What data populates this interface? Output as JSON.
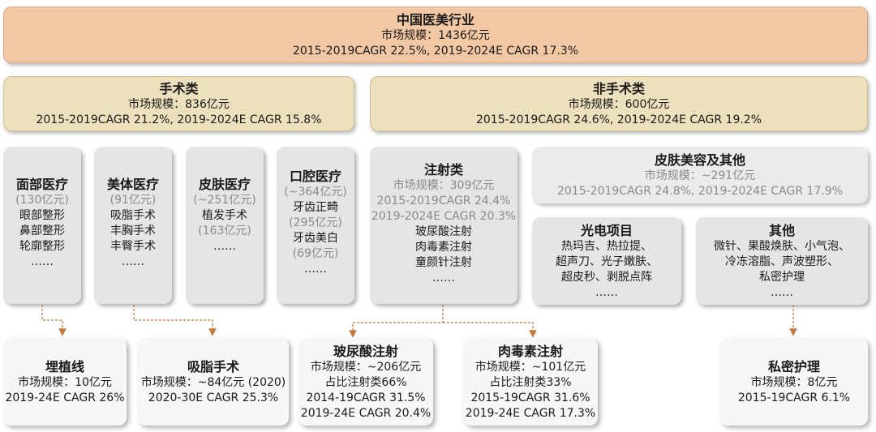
{
  "root": {
    "title": "中国医美行业",
    "market": "市场规模：1436亿元",
    "cagr": "2015-2019CAGR 22.5%, 2019-2024E CAGR 17.3%"
  },
  "surgical": {
    "title": "手术类",
    "market": "市场规模：836亿元",
    "cagr": "2015-2019CAGR 21.2%, 2019-2024E CAGR 15.8%"
  },
  "nonsurgical": {
    "title": "非手术类",
    "market": "市场规模：600亿元",
    "cagr": "2015-2019CAGR 24.6%, 2019-2024E CAGR 19.2%"
  },
  "face": {
    "title": "面部医疗",
    "size": "(130亿元)",
    "items": [
      "眼部整形",
      "鼻部整形",
      "轮廓整形"
    ],
    "more": "……"
  },
  "body": {
    "title": "美体医疗",
    "size": "(91亿元)",
    "items": [
      "吸脂手术",
      "丰胸手术",
      "丰臀手术"
    ],
    "more": "……"
  },
  "skin": {
    "title": "皮肤医疗",
    "size": "(~251亿元)",
    "item": "植发手术",
    "sub": "(163亿元)",
    "more": "……"
  },
  "oral": {
    "title": "口腔医疗",
    "size": "(~364亿元)",
    "item1": "牙齿正畸",
    "sub1": "(295亿元)",
    "item2": "牙齿美白",
    "sub2": "(69亿元)",
    "more": "……"
  },
  "injection": {
    "title": "注射类",
    "market": "市场规模：309亿元",
    "cagr1": "2015-2019CAGR 24.4%",
    "cagr2": "2019-2024E CAGR 20.3%",
    "items": [
      "玻尿酸注射",
      "肉毒素注射",
      "童颜针注射"
    ],
    "more": "……"
  },
  "skincare": {
    "title": "皮肤美容及其他",
    "market": "市场规模：~291亿元",
    "cagr": "2015-2019CAGR 24.8%, 2019-2024E CAGR 17.9%"
  },
  "photo": {
    "title": "光电项目",
    "lines": [
      "热玛吉、热拉提、",
      "超声刀、光子嫩肤、",
      "超皮秒、剥脱点阵"
    ],
    "more": "……"
  },
  "other": {
    "title": "其他",
    "lines": [
      "微针、果酸焕肤、小气泡、",
      "冷冻溶脂、声波塑形、",
      "私密护理"
    ],
    "more": "……"
  },
  "thread": {
    "title": "埋植线",
    "market": "市场规模：10亿元",
    "cagr": "2019-24E CAGR 26%"
  },
  "lipo": {
    "title": "吸脂手术",
    "market": "市场规模：~84亿元 (2020)",
    "cagr": "2020-30E CAGR 25.3%"
  },
  "hyaluronic": {
    "title": "玻尿酸注射",
    "market": "市场规模：~206亿元",
    "share": "占比注射类66%",
    "cagr1": "2014-19CAGR 31.5%",
    "cagr2": "2019-24E CAGR 20.4%"
  },
  "botox": {
    "title": "肉毒素注射",
    "market": "市场规模：~101亿元",
    "share": "占比注射类33%",
    "cagr1": "2015-19CAGR 31.6%",
    "cagr2": "2019-24E CAGR 17.3%"
  },
  "private": {
    "title": "私密护理",
    "market": "市场规模：8亿元",
    "cagr": "2015-19CAGR 6.1%"
  },
  "colors": {
    "arrow": "#c8763a"
  }
}
